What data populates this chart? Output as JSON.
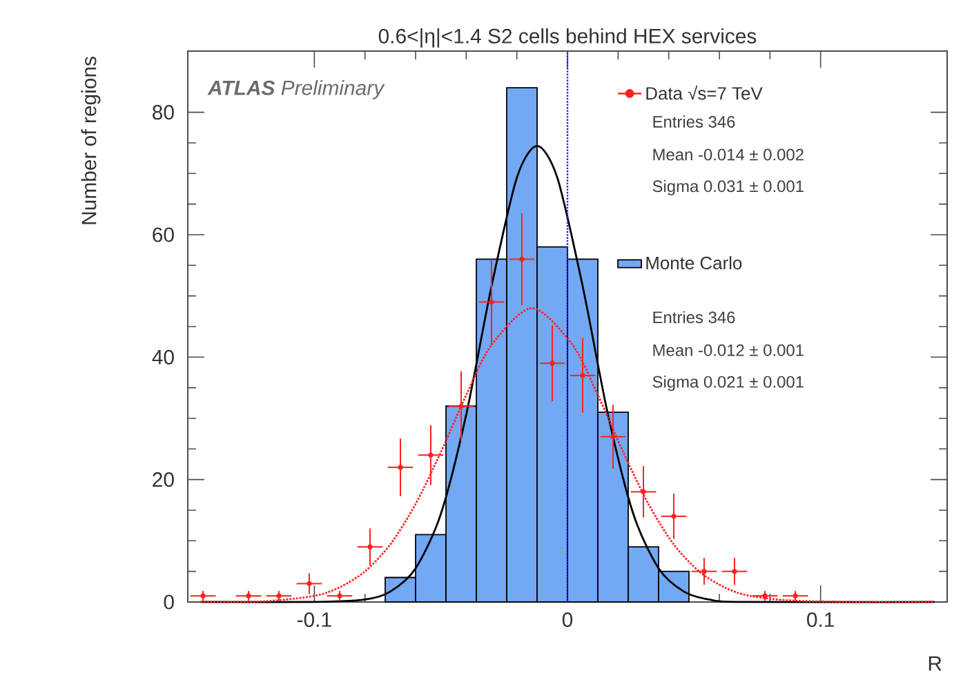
{
  "chart_data": {
    "type": "histogram",
    "title": "0.6<|η|<1.4 S2 cells behind HEX services",
    "xlabel": "R",
    "ylabel": "Number of regions",
    "xlim": [
      -0.15,
      0.15
    ],
    "ylim": [
      0,
      90
    ],
    "xticks": [
      -0.1,
      0,
      0.1
    ],
    "yticks": [
      0,
      20,
      40,
      60,
      80
    ],
    "legend": "top right",
    "series": [
      {
        "type": "scatter",
        "name": "Data √s=7 TeV",
        "color": "#ff2020",
        "marker": "circle",
        "x": [
          -0.144,
          -0.126,
          -0.114,
          -0.09,
          -0.102,
          -0.078,
          -0.066,
          -0.054,
          -0.042,
          -0.03,
          -0.018,
          -0.006,
          0.006,
          0.018,
          0.03,
          0.042,
          0.054,
          0.066,
          0.078,
          0.09
        ],
        "values": [
          1,
          1,
          1,
          1,
          3,
          9,
          22,
          24,
          32,
          49,
          56,
          39,
          37,
          27,
          18,
          14,
          5,
          5,
          1,
          1
        ],
        "errors": [
          0.8,
          0.8,
          0.8,
          0.8,
          1.7,
          3,
          4.7,
          4.9,
          5.7,
          7,
          7.5,
          6.2,
          6.1,
          5.2,
          4.2,
          3.7,
          2.2,
          2.2,
          0.8,
          0.8
        ],
        "xerrors": [
          0.005,
          0.005,
          0.005,
          0.005,
          0.005,
          0.005,
          0.005,
          0.005,
          0.005,
          0.005,
          0.005,
          0.005,
          0.005,
          0.005,
          0.005,
          0.005,
          0.005,
          0.005,
          0.005,
          0.005
        ]
      },
      {
        "name": "Monte Carlo",
        "color": "#73a8f5",
        "bins": [
          -0.072,
          -0.06,
          -0.048,
          -0.036,
          -0.024,
          -0.012,
          0,
          0.012,
          0.024,
          0.036,
          0.048
        ],
        "values": [
          4,
          11,
          32,
          56,
          84,
          58,
          56,
          31,
          9,
          5
        ]
      },
      {
        "type": "line",
        "color": "#000000",
        "line_style": "solid",
        "x": [
          -0.145,
          -0.1,
          -0.08,
          -0.07,
          -0.06,
          -0.05,
          -0.04,
          -0.03,
          -0.02,
          -0.012,
          -0.004,
          0.006,
          0.016,
          0.026,
          0.036,
          0.046,
          0.056,
          0.07,
          0.145
        ],
        "values": [
          0,
          0,
          0.4,
          1.7,
          5.5,
          14.4,
          30.6,
          51.6,
          69.3,
          74.5,
          69.3,
          51.6,
          30.6,
          14.4,
          5.5,
          1.7,
          0.4,
          0,
          0
        ]
      },
      {
        "type": "line",
        "color": "#ff2020",
        "line_style": "dotted",
        "x": [
          -0.145,
          -0.12,
          -0.1,
          -0.09,
          -0.08,
          -0.07,
          -0.06,
          -0.05,
          -0.04,
          -0.03,
          -0.014,
          0.002,
          0.012,
          0.022,
          0.032,
          0.042,
          0.052,
          0.062,
          0.072,
          0.09,
          0.12,
          0.145
        ],
        "values": [
          0,
          0.1,
          1,
          2.4,
          5,
          9.4,
          16,
          24.5,
          33.8,
          42,
          48,
          42,
          33.8,
          24.5,
          16,
          9.4,
          5,
          2.4,
          1,
          0.2,
          0,
          0
        ]
      }
    ],
    "ref_lines": [
      {
        "axis": "x",
        "value": 0,
        "color": "#1a1aff",
        "line_style": "dotted"
      }
    ],
    "annotations": [
      "**ATLAS** Preliminary",
      "Entries      346",
      "Mean   -0.014 ± 0.002",
      "Sigma  0.031 ± 0.001",
      "Entries      346",
      "Mean   -0.012 ± 0.001",
      "Sigma  0.021 ± 0.001"
    ]
  }
}
